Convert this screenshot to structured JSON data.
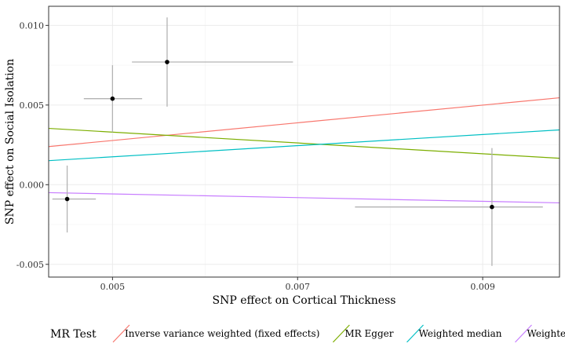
{
  "chart_data": {
    "type": "scatter",
    "xlabel": "SNP effect on Cortical Thickness",
    "ylabel": "SNP effect on Social Isolation",
    "xlim": [
      0.00431,
      0.00983
    ],
    "ylim": [
      -0.0058,
      0.0112
    ],
    "x_ticks": [
      0.005,
      0.007,
      0.009
    ],
    "x_tick_labels": [
      "0.005",
      "0.007",
      "0.009"
    ],
    "y_ticks": [
      -0.005,
      0.0,
      0.005,
      0.01
    ],
    "y_tick_labels": [
      "-0.005",
      "0.000",
      "0.005",
      "0.010"
    ],
    "grid": true,
    "points": [
      {
        "x": 0.00451,
        "y": -0.0009,
        "x_lo": 0.00435,
        "x_hi": 0.00482,
        "y_lo": -0.003,
        "y_hi": 0.0012
      },
      {
        "x": 0.005,
        "y": 0.0054,
        "x_lo": 0.00469,
        "x_hi": 0.00532,
        "y_lo": 0.0033,
        "y_hi": 0.0075
      },
      {
        "x": 0.00559,
        "y": 0.0077,
        "x_lo": 0.00521,
        "x_hi": 0.00695,
        "y_lo": 0.0049,
        "y_hi": 0.0105
      },
      {
        "x": 0.0091,
        "y": -0.0014,
        "x_lo": 0.00762,
        "x_hi": 0.00965,
        "y_lo": -0.0051,
        "y_hi": 0.0023
      }
    ],
    "series": [
      {
        "name": "Inverse variance weighted (fixed effects)",
        "color": "#F8766D",
        "intercept": 0.0,
        "slope": 0.555
      },
      {
        "name": "MR Egger",
        "color": "#7CAE00",
        "intercept": 0.005,
        "slope": -0.34
      },
      {
        "name": "Weighted median",
        "color": "#00BFC4",
        "intercept": 0.0,
        "slope": 0.35
      },
      {
        "name": "Weighted mode",
        "color": "#C77CFF",
        "intercept": 0.0,
        "slope": -0.116
      }
    ],
    "legend": {
      "title": "MR Test",
      "position": "bottom"
    }
  }
}
